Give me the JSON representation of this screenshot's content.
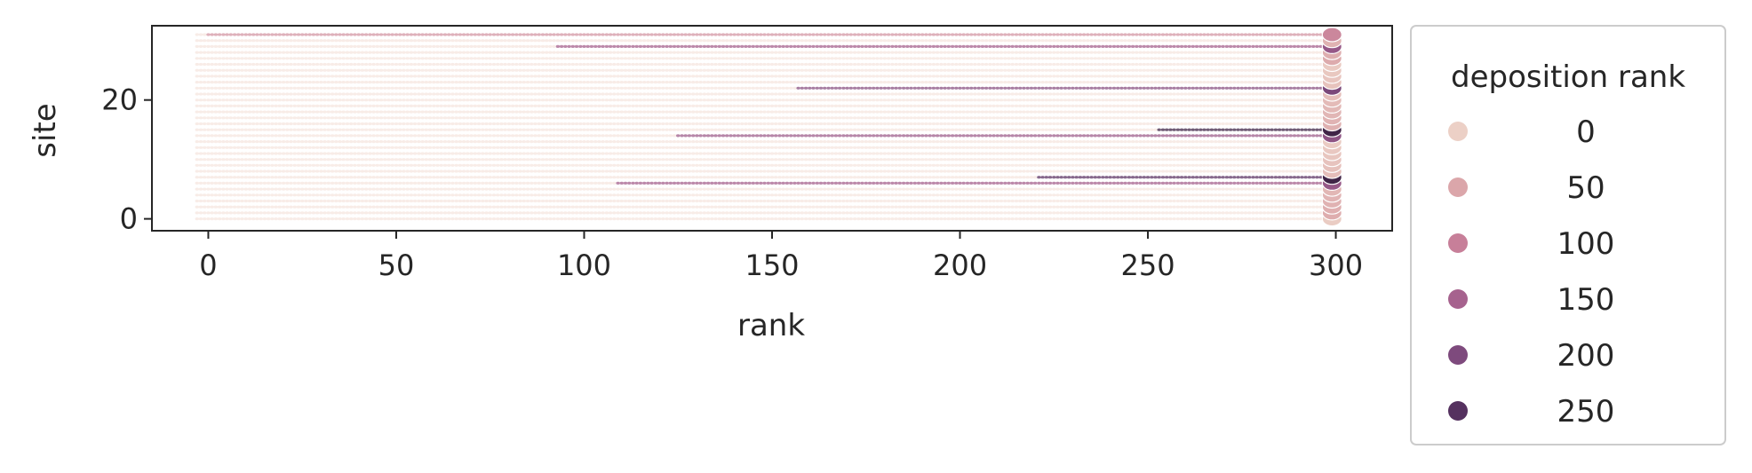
{
  "chart_data": {
    "type": "scatter",
    "xlabel": "rank",
    "ylabel": "site",
    "xlim": [
      -15,
      315
    ],
    "ylim": [
      -2,
      32.5
    ],
    "x_ticks": [
      0,
      50,
      100,
      150,
      200,
      250,
      300
    ],
    "y_ticks": [
      0,
      20
    ],
    "x_range": [
      -3,
      299
    ],
    "sites": 32,
    "last_rank": 299,
    "grid": false,
    "legend": {
      "title": "deposition rank",
      "placement": "outside-right",
      "entries": [
        {
          "label": "0",
          "color": "#ecd0c6"
        },
        {
          "label": "50",
          "color": "#dba6aa"
        },
        {
          "label": "100",
          "color": "#c77f99"
        },
        {
          "label": "150",
          "color": "#a6628e"
        },
        {
          "label": "200",
          "color": "#7e4a7d"
        },
        {
          "label": "250",
          "color": "#55315f"
        }
      ]
    },
    "highlight_rows": [
      {
        "site": 31,
        "from_rank": 0,
        "level": 70
      },
      {
        "site": 29,
        "from_rank": 93,
        "level": 150
      },
      {
        "site": 22,
        "from_rank": 157,
        "level": 185
      },
      {
        "site": 15,
        "from_rank": 253,
        "level": 280
      },
      {
        "site": 14,
        "from_rank": 125,
        "level": 160
      },
      {
        "site": 7,
        "from_rank": 221,
        "level": 240
      },
      {
        "site": 6,
        "from_rank": 109,
        "level": 150
      }
    ]
  }
}
